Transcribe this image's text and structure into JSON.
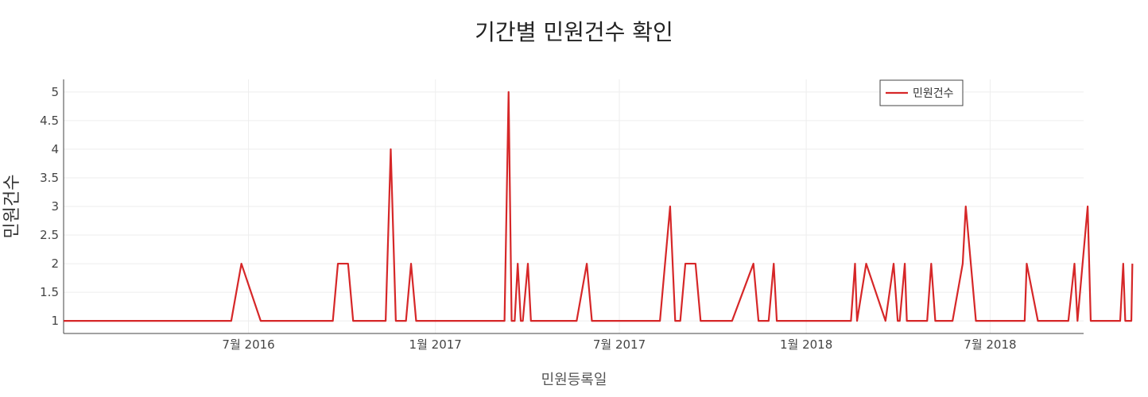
{
  "chart_data": {
    "type": "line",
    "title": "기간별 민원건수 확인",
    "xlabel": "민원등록일",
    "ylabel": "민원건수",
    "x_range": [
      "2016-01-01",
      "2018-10-01"
    ],
    "ylim": [
      0.78,
      5.22
    ],
    "y_ticks": [
      1,
      1.5,
      2,
      2.5,
      3,
      3.5,
      4,
      4.5,
      5
    ],
    "x_ticks": [
      {
        "date": "2016-07-01",
        "label": "7월 2016"
      },
      {
        "date": "2017-01-01",
        "label": "1월 2017"
      },
      {
        "date": "2017-07-01",
        "label": "7월 2017"
      },
      {
        "date": "2018-01-01",
        "label": "1월 2018"
      },
      {
        "date": "2018-07-01",
        "label": "7월 2018"
      }
    ],
    "grid": true,
    "legend_position": "top-right",
    "series": [
      {
        "name": "민원건수",
        "color": "#d62728",
        "points": [
          [
            "2016-01-01",
            1
          ],
          [
            "2016-06-14",
            1
          ],
          [
            "2016-06-24",
            2
          ],
          [
            "2016-07-13",
            1
          ],
          [
            "2016-09-12",
            1
          ],
          [
            "2016-09-22",
            1
          ],
          [
            "2016-09-27",
            2
          ],
          [
            "2016-10-07",
            2
          ],
          [
            "2016-10-12",
            1
          ],
          [
            "2016-11-13",
            1
          ],
          [
            "2016-11-18",
            4
          ],
          [
            "2016-11-23",
            1
          ],
          [
            "2016-12-03",
            1
          ],
          [
            "2016-12-08",
            2
          ],
          [
            "2016-12-13",
            1
          ],
          [
            "2017-03-10",
            1
          ],
          [
            "2017-03-14",
            5
          ],
          [
            "2017-03-17",
            1
          ],
          [
            "2017-03-20",
            1
          ],
          [
            "2017-03-23",
            2
          ],
          [
            "2017-03-26",
            1
          ],
          [
            "2017-03-28",
            1
          ],
          [
            "2017-04-02",
            2
          ],
          [
            "2017-04-05",
            1
          ],
          [
            "2017-05-20",
            1
          ],
          [
            "2017-05-30",
            2
          ],
          [
            "2017-06-04",
            1
          ],
          [
            "2017-08-10",
            1
          ],
          [
            "2017-08-20",
            3
          ],
          [
            "2017-08-25",
            1
          ],
          [
            "2017-08-30",
            1
          ],
          [
            "2017-09-04",
            2
          ],
          [
            "2017-09-14",
            2
          ],
          [
            "2017-09-19",
            1
          ],
          [
            "2017-10-20",
            1
          ],
          [
            "2017-11-10",
            2
          ],
          [
            "2017-11-15",
            1
          ],
          [
            "2017-11-25",
            1
          ],
          [
            "2017-11-30",
            2
          ],
          [
            "2017-12-03",
            1
          ],
          [
            "2018-02-14",
            1
          ],
          [
            "2018-02-18",
            2
          ],
          [
            "2018-02-20",
            1
          ],
          [
            "2018-03-01",
            2
          ],
          [
            "2018-03-20",
            1
          ],
          [
            "2018-03-28",
            2
          ],
          [
            "2018-04-01",
            1
          ],
          [
            "2018-04-03",
            1
          ],
          [
            "2018-04-08",
            2
          ],
          [
            "2018-04-10",
            1
          ],
          [
            "2018-04-30",
            1
          ],
          [
            "2018-05-04",
            2
          ],
          [
            "2018-05-08",
            1
          ],
          [
            "2018-05-25",
            1
          ],
          [
            "2018-06-04",
            2
          ],
          [
            "2018-06-07",
            3
          ],
          [
            "2018-06-17",
            1
          ],
          [
            "2018-08-04",
            1
          ],
          [
            "2018-08-06",
            2
          ],
          [
            "2018-08-17",
            1
          ],
          [
            "2018-09-16",
            1
          ],
          [
            "2018-09-22",
            2
          ],
          [
            "2018-09-25",
            1
          ],
          [
            "2018-10-05",
            3
          ],
          [
            "2018-10-08",
            1
          ],
          [
            "2018-11-06",
            1
          ],
          [
            "2018-11-09",
            2
          ],
          [
            "2018-11-11",
            1
          ],
          [
            "2018-11-17",
            1
          ],
          [
            "2018-11-18",
            2
          ]
        ]
      }
    ]
  }
}
